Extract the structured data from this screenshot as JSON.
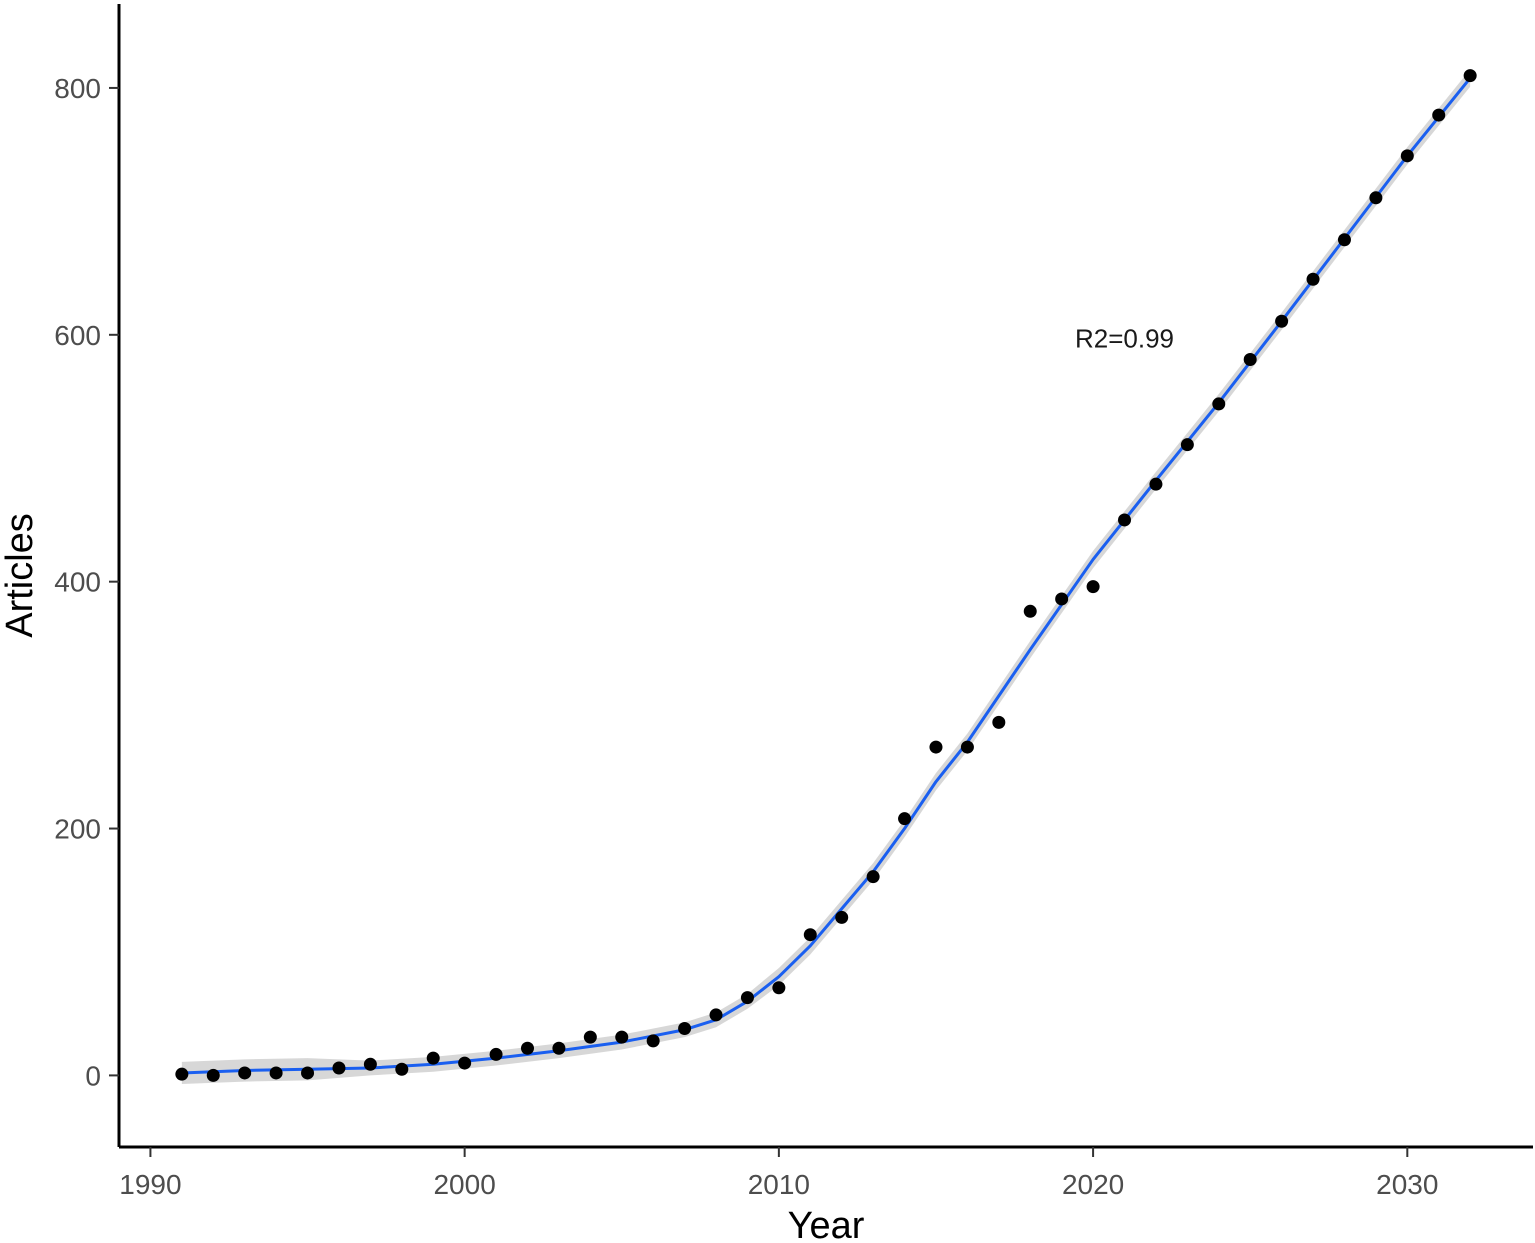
{
  "chart_data": {
    "type": "scatter",
    "title": "",
    "xlabel": "Year",
    "ylabel": "Articles",
    "xlim": [
      1989,
      2034
    ],
    "ylim": [
      -58,
      868
    ],
    "x_ticks": [
      1990,
      2000,
      2010,
      2020,
      2030
    ],
    "y_ticks": [
      0,
      200,
      400,
      600,
      800
    ],
    "x_tick_labels": [
      "1990",
      "2000",
      "2010",
      "2020",
      "2030"
    ],
    "y_tick_labels": [
      "0",
      "200",
      "400",
      "600",
      "800"
    ],
    "grid": false,
    "annotation": "R2=0.99",
    "annotation_at": [
      2021,
      598
    ],
    "colors": {
      "points": "#000000",
      "fit": "#1a5ff0",
      "band": "#d3d3d3",
      "axis": "#000000"
    },
    "series": [
      {
        "type": "scatter",
        "x": [
          1991,
          1992,
          1993,
          1994,
          1995,
          1996,
          1997,
          1998,
          1999,
          2000,
          2001,
          2002,
          2003,
          2004,
          2005,
          2006,
          2007,
          2008,
          2009,
          2010,
          2011,
          2012,
          2013,
          2014,
          2015,
          2016,
          2017,
          2018,
          2019,
          2020,
          2021,
          2022,
          2023,
          2024,
          2025,
          2026,
          2027,
          2028,
          2029,
          2030,
          2031,
          2032
        ],
        "y": [
          1,
          0,
          2,
          2,
          2,
          6,
          9,
          5,
          14,
          10,
          17,
          22,
          22,
          31,
          31,
          28,
          38,
          49,
          63,
          71,
          114,
          128,
          161,
          208,
          266,
          266,
          286,
          376,
          386,
          396,
          450,
          479,
          511,
          544,
          580,
          611,
          645,
          677,
          711,
          745,
          778,
          810
        ]
      },
      {
        "type": "line",
        "x": [
          1991,
          1993,
          1995,
          1997,
          1999,
          2001,
          2003,
          2005,
          2007,
          2008,
          2009,
          2010,
          2011,
          2012,
          2013,
          2014,
          2015,
          2016,
          2018,
          2020,
          2022,
          2024,
          2026,
          2028,
          2030,
          2032
        ],
        "y": [
          2,
          4,
          5,
          6,
          9,
          14,
          20,
          27,
          37,
          45,
          60,
          80,
          105,
          135,
          165,
          200,
          238,
          270,
          345,
          418,
          482,
          545,
          611,
          678,
          745,
          808
        ]
      }
    ]
  }
}
